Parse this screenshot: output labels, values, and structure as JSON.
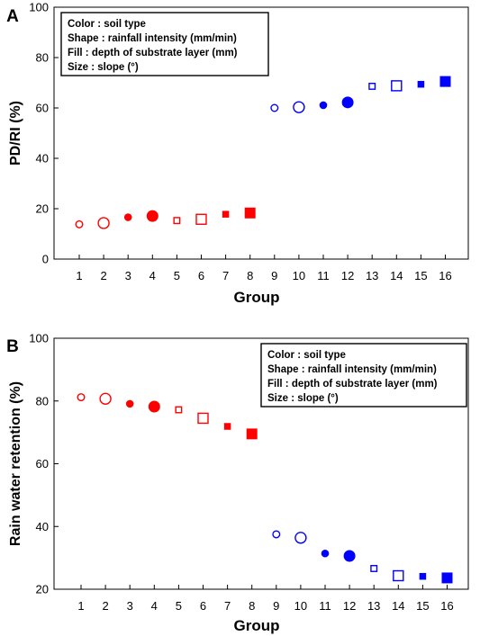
{
  "colors": {
    "red": "#ff0000",
    "blue": "#0000ff",
    "axis": "#000000"
  },
  "chart_data": [
    {
      "panel_label": "A",
      "type": "scatter",
      "ylabel": "PD/RI (%)",
      "xlabel": "Group",
      "ylim": [
        0,
        100
      ],
      "yticks": [
        0,
        20,
        40,
        60,
        80,
        100
      ],
      "xticks": [
        1,
        2,
        3,
        4,
        5,
        6,
        7,
        8,
        9,
        10,
        11,
        12,
        13,
        14,
        15,
        16
      ],
      "grid": false,
      "legend_position": "top-left",
      "legend": [
        "Color : soil type",
        "Shape : rainfall intensity (mm/min)",
        "Fill : depth of substrate layer (mm)",
        "Size : slope (°)"
      ],
      "points": [
        {
          "x": 1,
          "y": 13.8,
          "color": "red",
          "shape": "circle",
          "fill": false,
          "size": "small"
        },
        {
          "x": 2,
          "y": 14.3,
          "color": "red",
          "shape": "circle",
          "fill": false,
          "size": "large"
        },
        {
          "x": 3,
          "y": 16.6,
          "color": "red",
          "shape": "circle",
          "fill": true,
          "size": "small"
        },
        {
          "x": 4,
          "y": 17.1,
          "color": "red",
          "shape": "circle",
          "fill": true,
          "size": "large"
        },
        {
          "x": 5,
          "y": 15.3,
          "color": "red",
          "shape": "square",
          "fill": false,
          "size": "small"
        },
        {
          "x": 6,
          "y": 15.8,
          "color": "red",
          "shape": "square",
          "fill": false,
          "size": "large"
        },
        {
          "x": 7,
          "y": 17.8,
          "color": "red",
          "shape": "square",
          "fill": true,
          "size": "small"
        },
        {
          "x": 8,
          "y": 18.3,
          "color": "red",
          "shape": "square",
          "fill": true,
          "size": "large"
        },
        {
          "x": 9,
          "y": 60.0,
          "color": "blue",
          "shape": "circle",
          "fill": false,
          "size": "small"
        },
        {
          "x": 10,
          "y": 60.3,
          "color": "blue",
          "shape": "circle",
          "fill": false,
          "size": "large"
        },
        {
          "x": 11,
          "y": 61.1,
          "color": "blue",
          "shape": "circle",
          "fill": true,
          "size": "small"
        },
        {
          "x": 12,
          "y": 62.2,
          "color": "blue",
          "shape": "circle",
          "fill": true,
          "size": "large"
        },
        {
          "x": 13,
          "y": 68.6,
          "color": "blue",
          "shape": "square",
          "fill": false,
          "size": "small"
        },
        {
          "x": 14,
          "y": 68.8,
          "color": "blue",
          "shape": "square",
          "fill": false,
          "size": "large"
        },
        {
          "x": 15,
          "y": 69.4,
          "color": "blue",
          "shape": "square",
          "fill": true,
          "size": "small"
        },
        {
          "x": 16,
          "y": 70.5,
          "color": "blue",
          "shape": "square",
          "fill": true,
          "size": "large"
        }
      ]
    },
    {
      "panel_label": "B",
      "type": "scatter",
      "ylabel": "Rain water retention (%)",
      "xlabel": "Group",
      "ylim": [
        20,
        100
      ],
      "yticks": [
        20,
        40,
        60,
        80,
        100
      ],
      "xticks": [
        1,
        2,
        3,
        4,
        5,
        6,
        7,
        8,
        9,
        10,
        11,
        12,
        13,
        14,
        15,
        16
      ],
      "grid": false,
      "legend_position": "top-right",
      "legend": [
        "Color : soil type",
        "Shape : rainfall intensity (mm/min)",
        "Fill : depth of substrate layer (mm)",
        "Size : slope (°)"
      ],
      "points": [
        {
          "x": 1,
          "y": 81.2,
          "color": "red",
          "shape": "circle",
          "fill": false,
          "size": "small"
        },
        {
          "x": 2,
          "y": 80.7,
          "color": "red",
          "shape": "circle",
          "fill": false,
          "size": "large"
        },
        {
          "x": 3,
          "y": 79.1,
          "color": "red",
          "shape": "circle",
          "fill": true,
          "size": "small"
        },
        {
          "x": 4,
          "y": 78.2,
          "color": "red",
          "shape": "circle",
          "fill": true,
          "size": "large"
        },
        {
          "x": 5,
          "y": 77.2,
          "color": "red",
          "shape": "square",
          "fill": false,
          "size": "small"
        },
        {
          "x": 6,
          "y": 74.5,
          "color": "red",
          "shape": "square",
          "fill": false,
          "size": "large"
        },
        {
          "x": 7,
          "y": 71.9,
          "color": "red",
          "shape": "square",
          "fill": true,
          "size": "small"
        },
        {
          "x": 8,
          "y": 69.5,
          "color": "red",
          "shape": "square",
          "fill": true,
          "size": "large"
        },
        {
          "x": 9,
          "y": 37.5,
          "color": "blue",
          "shape": "circle",
          "fill": false,
          "size": "small"
        },
        {
          "x": 10,
          "y": 36.4,
          "color": "blue",
          "shape": "circle",
          "fill": false,
          "size": "large"
        },
        {
          "x": 11,
          "y": 31.4,
          "color": "blue",
          "shape": "circle",
          "fill": true,
          "size": "small"
        },
        {
          "x": 12,
          "y": 30.6,
          "color": "blue",
          "shape": "circle",
          "fill": true,
          "size": "large"
        },
        {
          "x": 13,
          "y": 26.6,
          "color": "blue",
          "shape": "square",
          "fill": false,
          "size": "small"
        },
        {
          "x": 14,
          "y": 24.3,
          "color": "blue",
          "shape": "square",
          "fill": false,
          "size": "large"
        },
        {
          "x": 15,
          "y": 24.1,
          "color": "blue",
          "shape": "square",
          "fill": true,
          "size": "small"
        },
        {
          "x": 16,
          "y": 23.6,
          "color": "blue",
          "shape": "square",
          "fill": true,
          "size": "large"
        }
      ]
    }
  ]
}
